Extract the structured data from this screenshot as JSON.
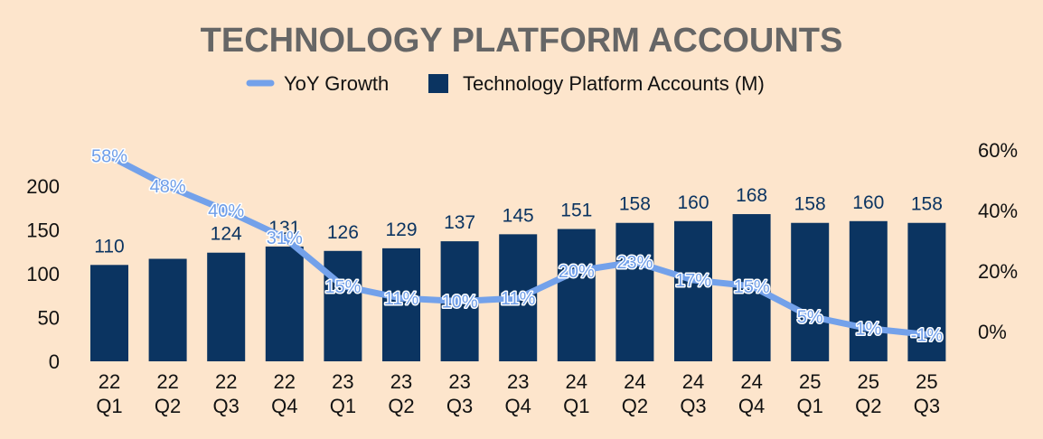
{
  "chart_data": {
    "type": "bar",
    "title": "TECHNOLOGY PLATFORM ACCOUNTS",
    "legend": {
      "position": "top",
      "line_label": "YoY Growth",
      "bar_label": "Technology Platform Accounts (M)"
    },
    "categories": [
      [
        "22",
        "Q1"
      ],
      [
        "22",
        "Q2"
      ],
      [
        "22",
        "Q3"
      ],
      [
        "22",
        "Q4"
      ],
      [
        "23",
        "Q1"
      ],
      [
        "23",
        "Q2"
      ],
      [
        "23",
        "Q3"
      ],
      [
        "23",
        "Q4"
      ],
      [
        "24",
        "Q1"
      ],
      [
        "24",
        "Q2"
      ],
      [
        "24",
        "Q3"
      ],
      [
        "24",
        "Q4"
      ],
      [
        "25",
        "Q1"
      ],
      [
        "25",
        "Q2"
      ],
      [
        "25",
        "Q3"
      ]
    ],
    "series": [
      {
        "name": "Technology Platform Accounts (M)",
        "type": "bar",
        "axis": "left",
        "values": [
          110,
          117,
          124,
          131,
          126,
          129,
          137,
          145,
          151,
          158,
          160,
          168,
          158,
          160,
          158
        ],
        "labels": [
          "110",
          "",
          "124",
          "131",
          "126",
          "129",
          "137",
          "145",
          "151",
          "158",
          "160",
          "168",
          "158",
          "160",
          "158"
        ]
      },
      {
        "name": "YoY Growth",
        "type": "line",
        "axis": "right",
        "values": [
          58,
          48,
          40,
          31,
          15,
          11,
          10,
          11,
          20,
          23,
          17,
          15,
          5,
          1,
          -1
        ],
        "labels": [
          "58%",
          "48%",
          "40%",
          "31%",
          "15%",
          "11%",
          "10%",
          "11%",
          "20%",
          "23%",
          "17%",
          "15%",
          "5%",
          "1%",
          "-1%"
        ]
      }
    ],
    "y_left": {
      "range": [
        0,
        200
      ],
      "ticks": [
        "0",
        "50",
        "100",
        "150",
        "200"
      ]
    },
    "y_right": {
      "range": [
        -10,
        70
      ],
      "ticks": [
        "0%",
        "20%",
        "40%",
        "60%"
      ],
      "tick_values": [
        0,
        20,
        40,
        60
      ]
    },
    "colors": {
      "bar": "#0b3461",
      "line": "#73a1ea",
      "background": "#fde5cc",
      "title": "#666666"
    }
  }
}
